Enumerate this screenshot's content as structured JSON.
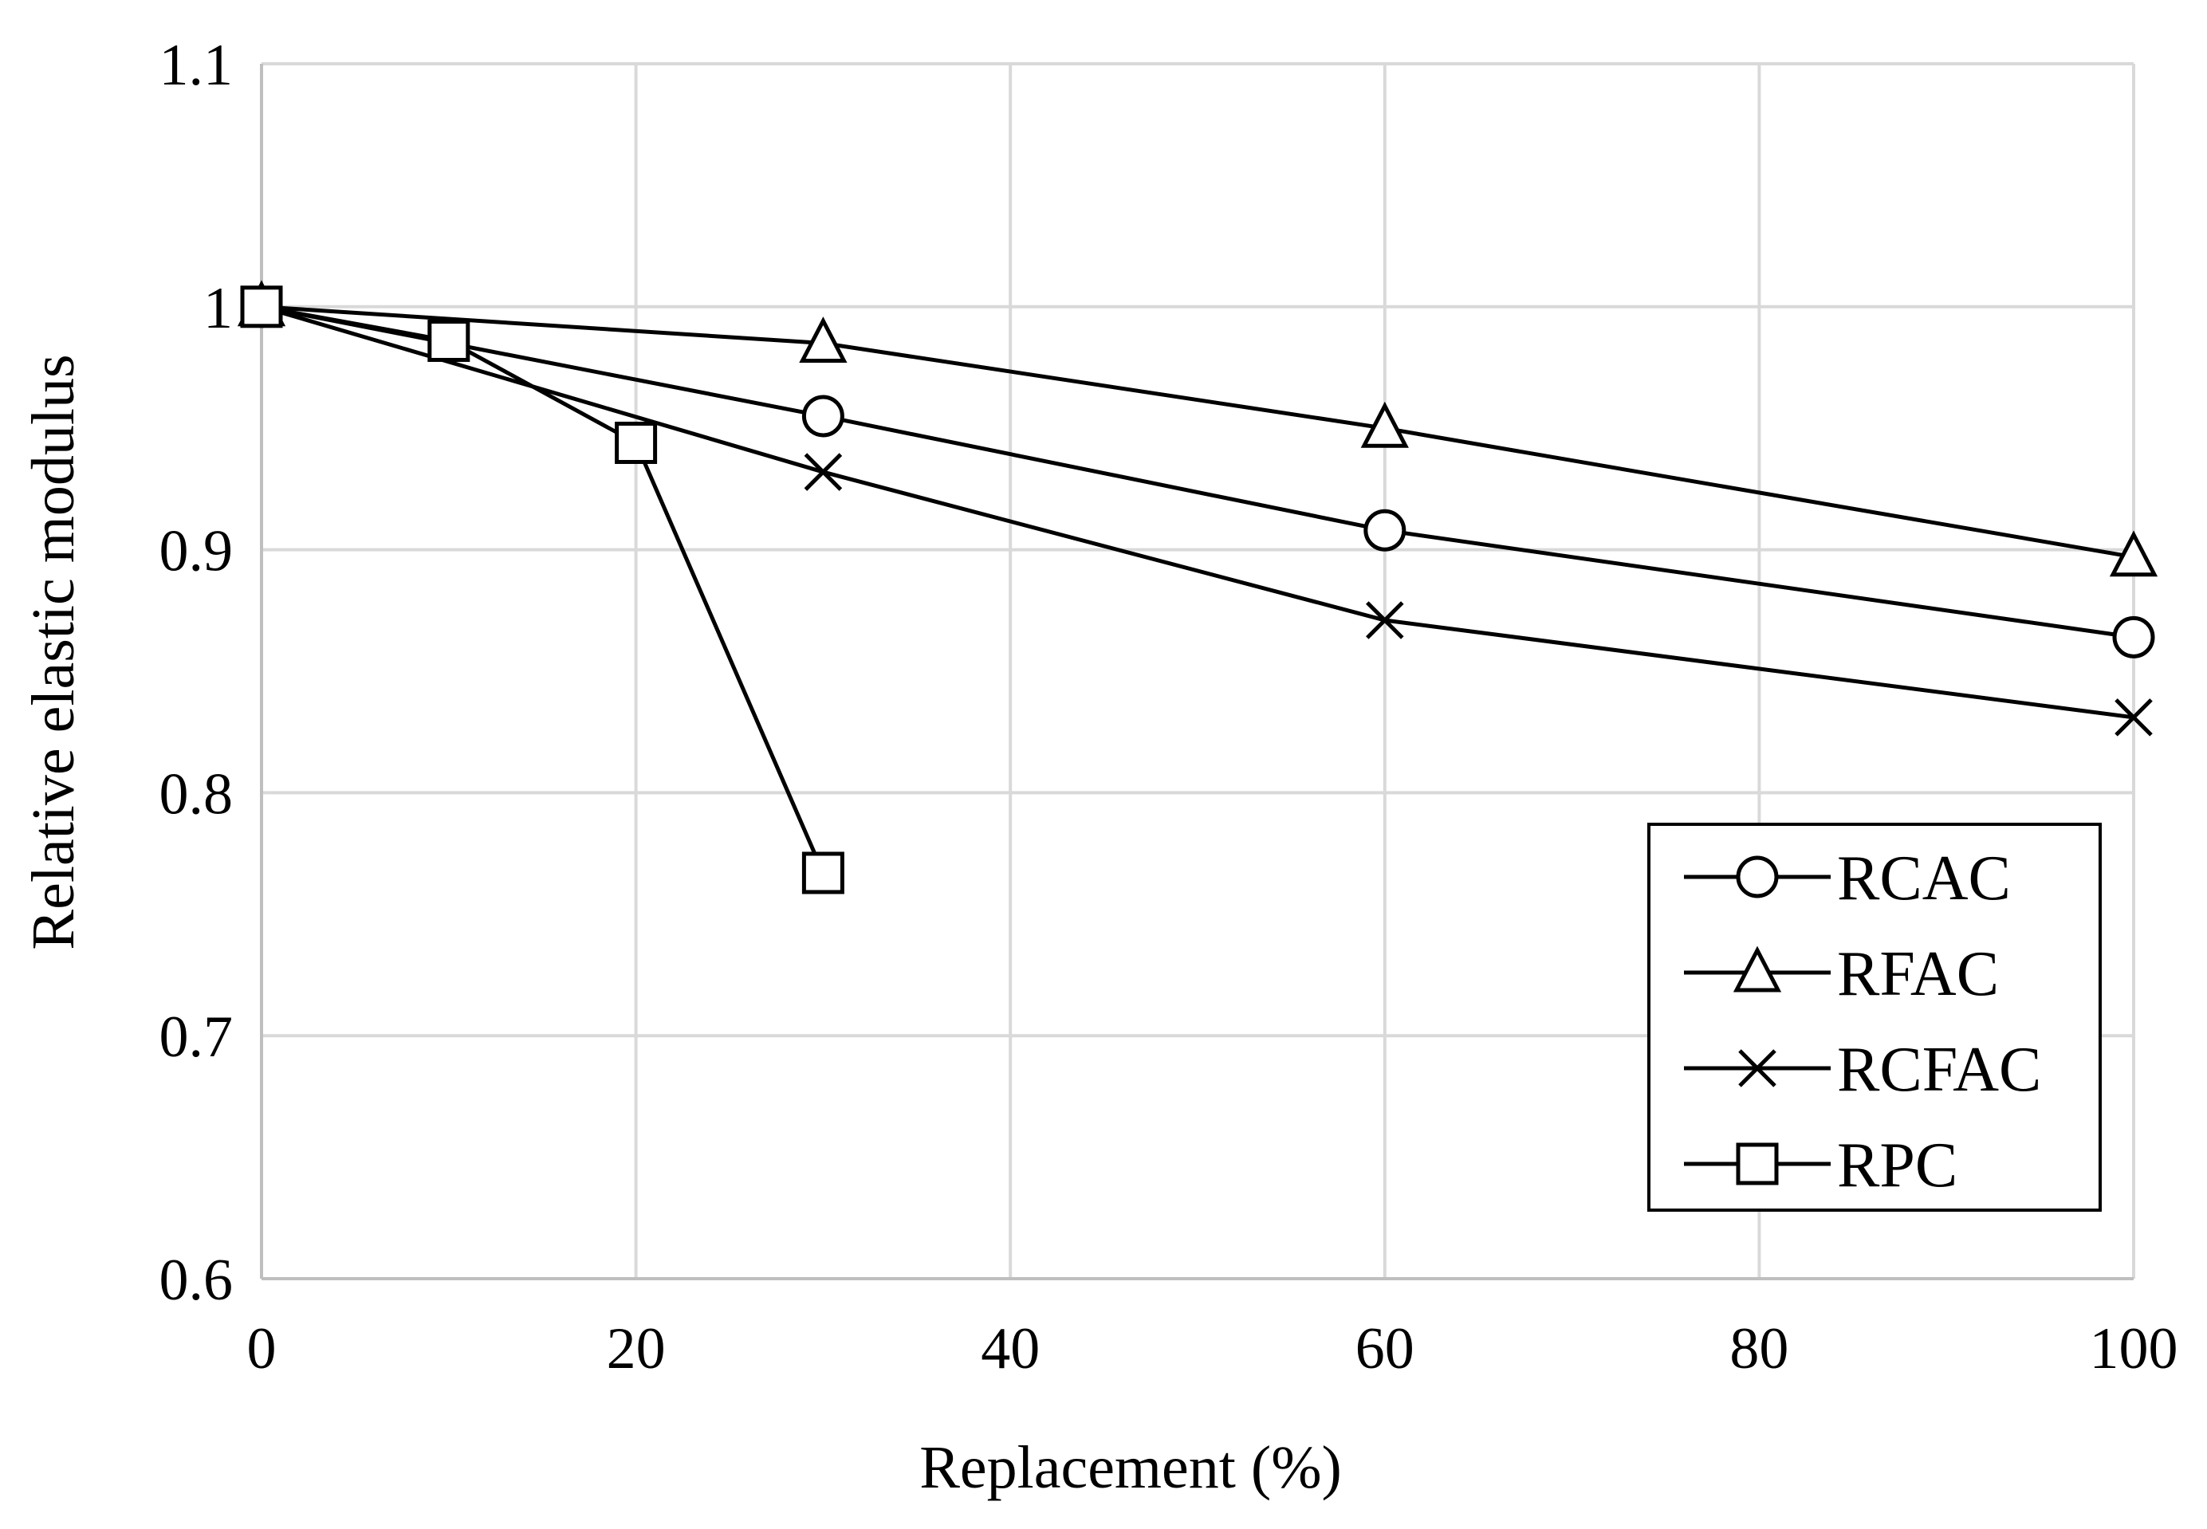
{
  "chart_data": {
    "type": "line",
    "title": "",
    "xlabel": "Replacement (%)",
    "ylabel": "Relative elastic modulus",
    "xlim": [
      0,
      100
    ],
    "ylim": [
      0.6,
      1.1
    ],
    "x_ticks": [
      0,
      20,
      40,
      60,
      80,
      100
    ],
    "x_tick_labels": [
      "0",
      "20",
      "40",
      "60",
      "80",
      "100"
    ],
    "y_ticks": [
      0.6,
      0.7,
      0.8,
      0.9,
      1.0,
      1.1
    ],
    "y_tick_labels": [
      "0.6",
      "0.7",
      "0.8",
      "0.9",
      "1",
      "1.1"
    ],
    "grid": true,
    "legend_position": "bottom-right",
    "colors": {
      "line": "#000000",
      "grid": "#d9d9d9",
      "marker_fill": "#ffffff"
    },
    "series": [
      {
        "name": "RCAC",
        "marker": "circle",
        "x": [
          0,
          30,
          60,
          100
        ],
        "y": [
          1.0,
          0.955,
          0.908,
          0.864
        ]
      },
      {
        "name": "RFAC",
        "marker": "triangle",
        "x": [
          0,
          30,
          60,
          100
        ],
        "y": [
          1.0,
          0.985,
          0.95,
          0.897
        ]
      },
      {
        "name": "RCFAC",
        "marker": "x",
        "x": [
          0,
          30,
          60,
          100
        ],
        "y": [
          1.0,
          0.932,
          0.871,
          0.831
        ]
      },
      {
        "name": "RPC",
        "marker": "square",
        "x": [
          0,
          10,
          20,
          30
        ],
        "y": [
          1.0,
          0.986,
          0.944,
          0.767
        ]
      }
    ]
  }
}
